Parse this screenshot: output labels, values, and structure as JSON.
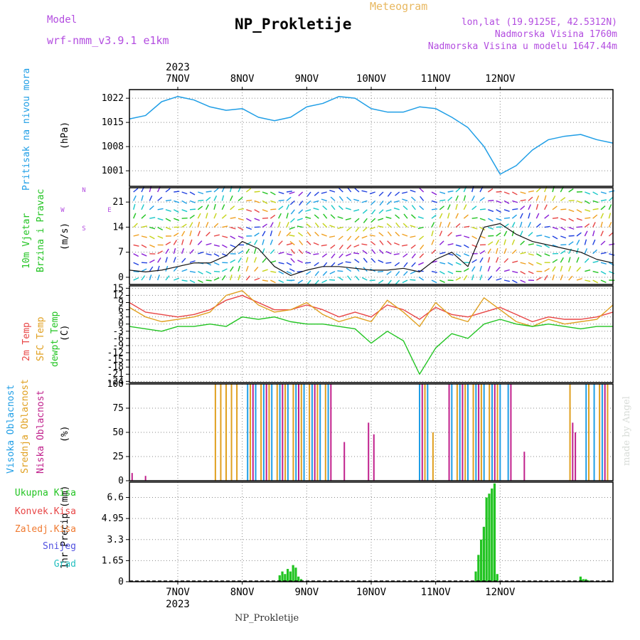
{
  "header": {
    "model_label": "Model",
    "model_name": "wrf-nmm_v3.9.1 e1km",
    "title": "NP_Prokletije",
    "subtitle": "Meteogram",
    "lonlat": "lon,lat (19.9125E, 42.5312N)",
    "altitude": "Nadmorska Visina 1760m",
    "model_altitude": "Nadmorska Visina u modelu 1647.44m",
    "watermark": "made by Angel",
    "footer": "NP_Prokletije"
  },
  "colors": {
    "purple_text": "#b34de0",
    "pressure": "#1f9ee6",
    "t2m": "#e84545",
    "sfc": "#e0a020",
    "dewpt": "#22c422",
    "high_cloud": "#1f9ee6",
    "mid_cloud": "#e0a020",
    "low_cloud": "#c0208c",
    "precip": "#22c422"
  },
  "chart_data": [
    {
      "type": "line",
      "panel": "pressure",
      "ylabel": [
        "Pritisak na nivou mora",
        "(hPa)"
      ],
      "xticks": [
        "7NOV",
        "8NOV",
        "9NOV",
        "10NOV",
        "11NOV",
        "12NOV"
      ],
      "year": "2023",
      "yticks": [
        1001,
        1008,
        1015,
        1022
      ],
      "ylim": [
        996.5,
        1024.5
      ],
      "x": [
        0,
        6,
        12,
        18,
        24,
        30,
        36,
        42,
        48,
        54,
        60,
        66,
        72,
        78,
        84,
        90,
        96,
        102,
        108,
        114,
        120,
        126,
        132,
        138,
        144,
        150,
        156,
        162,
        168,
        174,
        180
      ],
      "values": [
        1016,
        1017,
        1021,
        1022.5,
        1021.5,
        1019.5,
        1018.5,
        1019,
        1016.5,
        1015.5,
        1016.5,
        1019.5,
        1020.5,
        1022.5,
        1022,
        1019,
        1018,
        1018,
        1019.5,
        1019,
        1016.5,
        1013.5,
        1008,
        1000,
        1002.5,
        1007,
        1010,
        1011,
        1011.5,
        1010,
        1009
      ]
    },
    {
      "type": "line",
      "panel": "wind",
      "ylabel": [
        "10m Vjetar",
        "Brzina i Pravac",
        "(m/s)"
      ],
      "compass": {
        "n": "N",
        "e": "E",
        "s": "S",
        "w": "W"
      },
      "yticks": [
        0,
        7,
        14,
        21
      ],
      "ylim": [
        -2,
        25
      ],
      "x": [
        0,
        6,
        12,
        18,
        24,
        30,
        36,
        42,
        48,
        54,
        60,
        66,
        72,
        78,
        84,
        90,
        96,
        102,
        108,
        114,
        120,
        126,
        132,
        138,
        144,
        150,
        156,
        162,
        168,
        174,
        180
      ],
      "values": [
        2,
        1.5,
        2,
        3,
        4,
        4,
        6,
        10,
        8,
        3,
        0.5,
        2,
        3,
        3,
        2.5,
        2,
        2,
        2.5,
        1.5,
        5,
        7,
        3,
        14,
        15,
        12,
        10,
        9,
        8,
        7,
        5,
        4
      ]
    },
    {
      "type": "line",
      "panel": "temperature",
      "ylabel": [
        "2m Temp",
        "SFC Temp",
        "dewpt Temp",
        "(C)"
      ],
      "yticks": [
        15,
        12,
        9,
        6,
        3,
        0,
        -3,
        -6,
        -9,
        -12,
        -15,
        -18,
        -21,
        -24
      ],
      "ylim": [
        -24.5,
        16
      ],
      "x": [
        0,
        6,
        12,
        18,
        24,
        30,
        36,
        42,
        48,
        54,
        60,
        66,
        72,
        78,
        84,
        90,
        96,
        102,
        108,
        114,
        120,
        126,
        132,
        138,
        144,
        150,
        156,
        162,
        168,
        174,
        180
      ],
      "series": [
        {
          "name": "2m Temp",
          "color_key": "t2m",
          "values": [
            9,
            5,
            4,
            3,
            4,
            6,
            10,
            12,
            9,
            6,
            6,
            8,
            6,
            3,
            5,
            3,
            8,
            6,
            2,
            7,
            4,
            3,
            5,
            7,
            4,
            1,
            3,
            2,
            2,
            3,
            5
          ]
        },
        {
          "name": "SFC Temp",
          "color_key": "sfc",
          "values": [
            7,
            3,
            1,
            2,
            3,
            5,
            12,
            14,
            8,
            5,
            6,
            9,
            4,
            1,
            3,
            1,
            10,
            5,
            -1,
            9,
            3,
            1,
            11,
            6,
            1,
            -1,
            2,
            0,
            1,
            2,
            8
          ]
        },
        {
          "name": "dewpt Temp",
          "color_key": "dewpt",
          "values": [
            -1,
            -2,
            -3,
            -1,
            -1,
            0,
            -1,
            3,
            2,
            3,
            1,
            0,
            0,
            -1,
            -2,
            -8,
            -3,
            -7,
            -21,
            -10,
            -4,
            -6,
            0,
            2,
            0,
            -1,
            0,
            -1,
            -2,
            -1,
            -1
          ]
        }
      ]
    },
    {
      "type": "bar",
      "panel": "clouds",
      "ylabel": [
        "Visoka Oblacnost",
        "Srednja Oblacnost",
        "Niska Oblacnost",
        "(%)"
      ],
      "yticks": [
        0,
        25,
        50,
        75,
        100
      ],
      "ylim": [
        0,
        100
      ],
      "series": [
        {
          "name": "Visoka Oblacnost",
          "color_key": "high_cloud",
          "bars": [
            [
              44,
              100
            ],
            [
              47,
              100
            ],
            [
              50,
              100
            ],
            [
              53,
              100
            ],
            [
              56,
              100
            ],
            [
              59,
              100
            ],
            [
              62,
              100
            ],
            [
              65,
              100
            ],
            [
              68,
              100
            ],
            [
              71,
              100
            ],
            [
              74,
              100
            ],
            [
              108,
              100
            ],
            [
              111,
              100
            ],
            [
              120,
              100
            ],
            [
              123,
              100
            ],
            [
              126,
              100
            ],
            [
              129,
              100
            ],
            [
              132,
              100
            ],
            [
              135,
              100
            ],
            [
              138,
              100
            ],
            [
              141,
              100
            ],
            [
              170,
              100
            ],
            [
              173,
              100
            ],
            [
              176,
              100
            ]
          ]
        },
        {
          "name": "Srednja Oblacnost",
          "color_key": "mid_cloud",
          "bars": [
            [
              32,
              100
            ],
            [
              34,
              100
            ],
            [
              36,
              100
            ],
            [
              38,
              100
            ],
            [
              40,
              100
            ],
            [
              45,
              100
            ],
            [
              49,
              100
            ],
            [
              52,
              100
            ],
            [
              55,
              100
            ],
            [
              58,
              100
            ],
            [
              61,
              100
            ],
            [
              64,
              100
            ],
            [
              67,
              100
            ],
            [
              70,
              100
            ],
            [
              73,
              100
            ],
            [
              110,
              100
            ],
            [
              113,
              50
            ],
            [
              122,
              100
            ],
            [
              125,
              100
            ],
            [
              128,
              100
            ],
            [
              131,
              100
            ],
            [
              134,
              100
            ],
            [
              137,
              100
            ],
            [
              164,
              100
            ],
            [
              171,
              100
            ],
            [
              175,
              100
            ],
            [
              178,
              100
            ]
          ]
        },
        {
          "name": "Niska Oblacnost",
          "color_key": "low_cloud",
          "bars": [
            [
              1,
              8
            ],
            [
              6,
              5
            ],
            [
              46,
              100
            ],
            [
              51,
              100
            ],
            [
              57,
              100
            ],
            [
              63,
              100
            ],
            [
              69,
              100
            ],
            [
              75,
              100
            ],
            [
              80,
              40
            ],
            [
              89,
              60
            ],
            [
              91,
              48
            ],
            [
              109,
              100
            ],
            [
              119,
              100
            ],
            [
              124,
              100
            ],
            [
              130,
              100
            ],
            [
              136,
              100
            ],
            [
              142,
              100
            ],
            [
              147,
              30
            ],
            [
              165,
              60
            ],
            [
              166,
              50
            ],
            [
              177,
              100
            ]
          ]
        }
      ]
    },
    {
      "type": "bar",
      "panel": "precipitation",
      "ylabel": [
        "1hr Precip (mm)"
      ],
      "legend": [
        "Ukupna Kisa",
        "Konvek.Kisa",
        "Zaledj.Kisa",
        "Snijeg",
        "Grad"
      ],
      "legend_colors": [
        "#22c422",
        "#e84545",
        "#f07a30",
        "#5050e0",
        "#25c0c0"
      ],
      "yticks": [
        0,
        1.65,
        3.3,
        4.95,
        6.6
      ],
      "ylim": [
        0,
        7.8
      ],
      "bars": [
        [
          56,
          0.5
        ],
        [
          57,
          0.8
        ],
        [
          58,
          0.6
        ],
        [
          59,
          1.0
        ],
        [
          60,
          0.8
        ],
        [
          61,
          1.3
        ],
        [
          62,
          1.1
        ],
        [
          63,
          0.4
        ],
        [
          64,
          0.2
        ],
        [
          129,
          0.8
        ],
        [
          130,
          2.1
        ],
        [
          131,
          3.3
        ],
        [
          132,
          4.3
        ],
        [
          133,
          6.6
        ],
        [
          134,
          6.9
        ],
        [
          135,
          7.3
        ],
        [
          136,
          7.7
        ],
        [
          137,
          0.6
        ],
        [
          168,
          0.4
        ],
        [
          169,
          0.2
        ],
        [
          170,
          0.2
        ],
        [
          171,
          0.1
        ]
      ]
    }
  ]
}
